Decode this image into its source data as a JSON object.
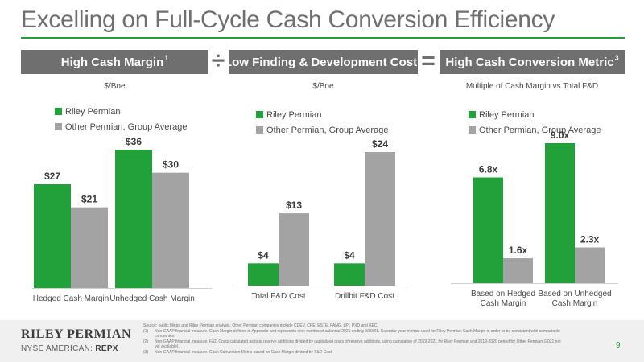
{
  "title": "Excelling on Full-Cycle Cash Conversion Efficiency",
  "header": {
    "box1": {
      "label": "High Cash Margin",
      "sup": "1"
    },
    "op1": "÷",
    "box2": {
      "label": "Low Finding & Development Cost",
      "sup": "2"
    },
    "op2": "=",
    "box3": {
      "label": "High Cash Conversion Metric",
      "sup": "3"
    }
  },
  "units": {
    "chart1": "$/Boe",
    "chart2": "$/Boe",
    "chart3": "Multiple of Cash Margin vs Total F&D"
  },
  "legend": {
    "series1": "Riley Permian",
    "series2": "Other Permian, Group Average"
  },
  "colors": {
    "riley": "#22a03a",
    "peers": "#a3a3a3",
    "accent": "#2a9d3b",
    "header_box": "#6f6f6f"
  },
  "chart_data": [
    {
      "type": "bar",
      "categories": [
        "Hedged Cash Margin",
        "Unhedged Cash Margin"
      ],
      "series": [
        {
          "name": "Riley Permian",
          "values": [
            27,
            36
          ],
          "labels": [
            "$27",
            "$36"
          ]
        },
        {
          "name": "Other Permian, Group Average",
          "values": [
            21,
            30
          ],
          "labels": [
            "$21",
            "$30"
          ]
        }
      ],
      "ylim": [
        0,
        36
      ],
      "grid": false
    },
    {
      "type": "bar",
      "categories": [
        "Total F&D Cost",
        "Drillbit F&D Cost"
      ],
      "series": [
        {
          "name": "Riley Permian",
          "values": [
            4,
            4
          ],
          "labels": [
            "$4",
            "$4"
          ]
        },
        {
          "name": "Other Permian, Group Average",
          "values": [
            13,
            24
          ],
          "labels": [
            "$13",
            "$24"
          ]
        }
      ],
      "ylim": [
        0,
        24
      ],
      "grid": false
    },
    {
      "type": "bar",
      "categories": [
        "Based on Hedged Cash Margin",
        "Based on Unhedged Cash Margin"
      ],
      "series": [
        {
          "name": "Riley Permian",
          "values": [
            6.8,
            9.0
          ],
          "labels": [
            "6.8x",
            "9.0x"
          ]
        },
        {
          "name": "Other Permian, Group Average",
          "values": [
            1.6,
            2.3
          ],
          "labels": [
            "1.6x",
            "2.3x"
          ]
        }
      ],
      "ylim": [
        0,
        9.0
      ],
      "grid": false
    }
  ],
  "footer": {
    "company": "RILEY PERMIAN",
    "exchange": "NYSE AMERICAN:",
    "ticker": "REPX",
    "page": "9",
    "source": "Source: public filings and Riley Permian analysis. Other Permian companies include CDEV, CPE, ESTE, FANG, LPI, PXD and XEC.",
    "notes": [
      {
        "num": "(1)",
        "text": "Non-GAAP financial measure. Cash Margin defined in Appendix and represents nine months of calendar 2021 ending 9/30/21. Calendar year metrics used for Riley Permian Cash Margin in order to be consistent with comparable companies."
      },
      {
        "num": "(2)",
        "text": "Non-GAAP financial measure. F&D Costs calculated as total reserve additions divided by capitalized costs of reserve additions, using cumulative of 2019-2021 for Riley Permian and 2019-2020 period for Other Permian (2021 not yet available)."
      },
      {
        "num": "(3)",
        "text": "Non-GAAP financial measure. Cash Conversion Metric based on Cash Margin divided by F&D Cost."
      }
    ]
  }
}
